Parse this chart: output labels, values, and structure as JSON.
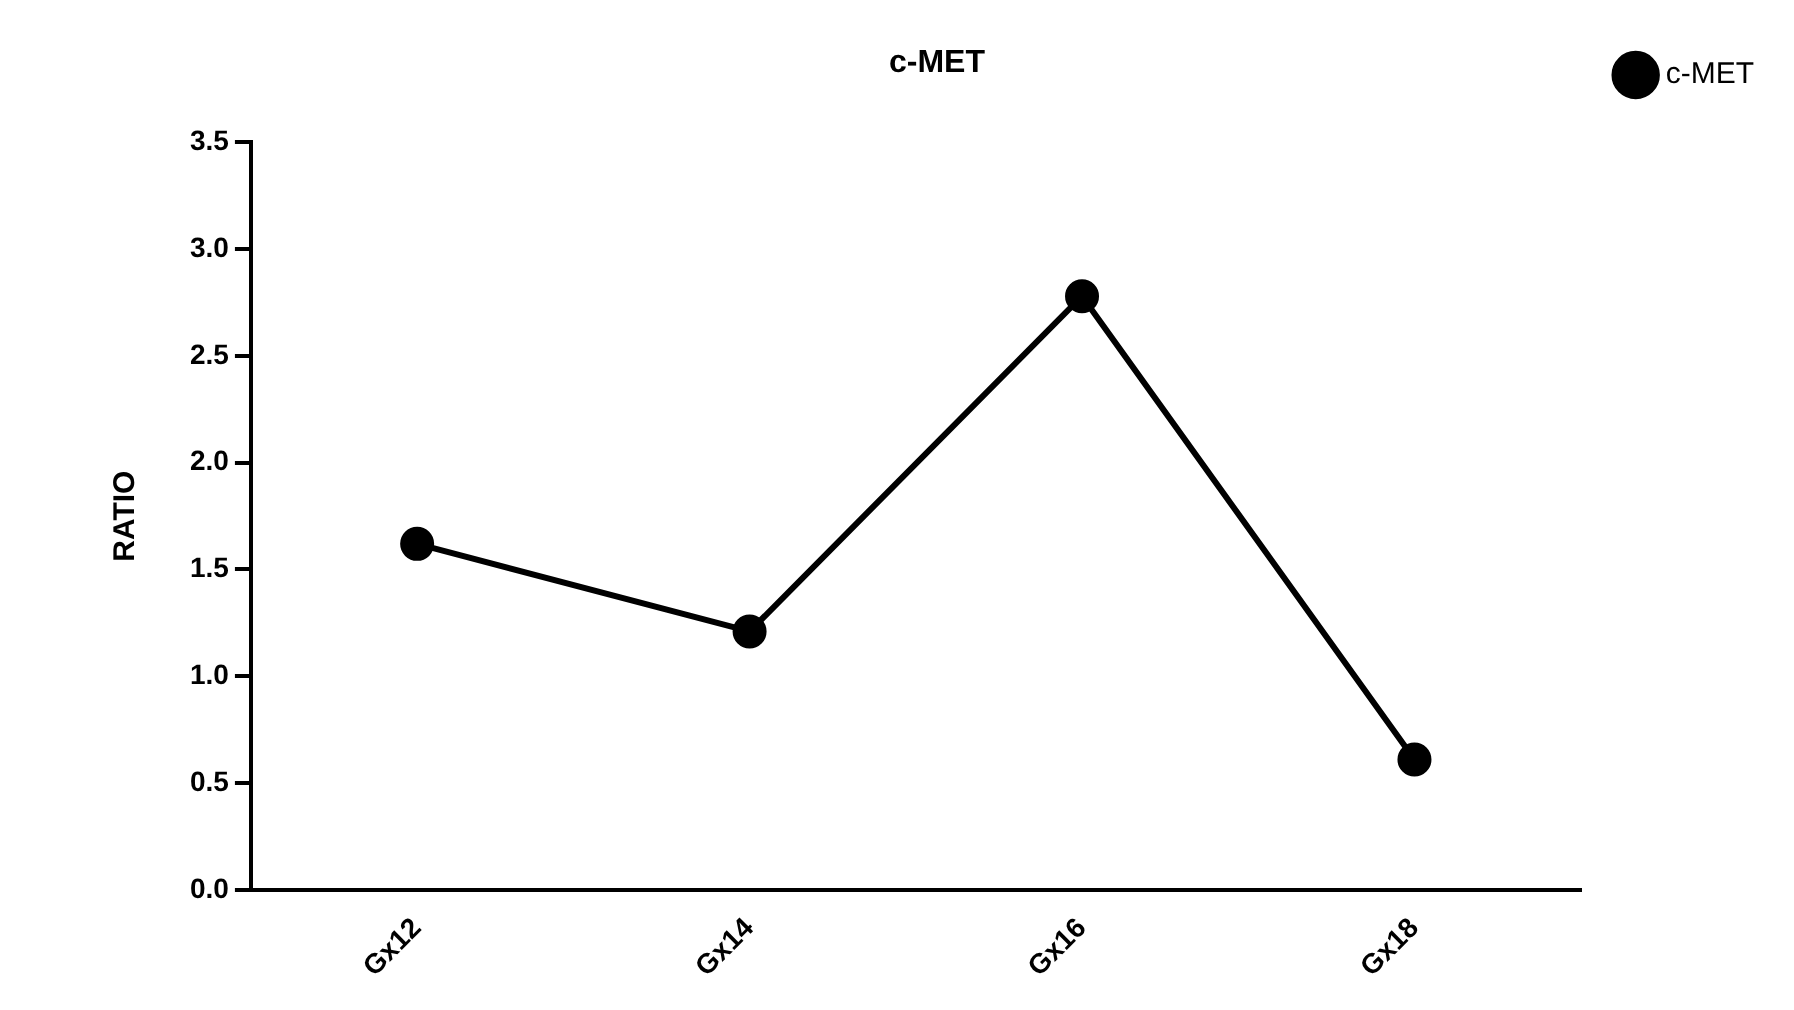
{
  "chart_data": {
    "type": "line",
    "title": "c-MET",
    "ylabel": "RATIO",
    "categories": [
      "Gx12",
      "Gx14",
      "Gx16",
      "Gx18"
    ],
    "series": [
      {
        "name": "c-MET",
        "color": "#000000",
        "values": [
          1.62,
          1.21,
          2.78,
          0.61
        ]
      }
    ],
    "ylim": [
      0,
      3.5
    ],
    "yticks": [
      {
        "value": 0,
        "label": "0.0"
      },
      0.5,
      {
        "value": 1,
        "label": "1.0"
      },
      1.5,
      {
        "value": 2,
        "label": "2.0"
      },
      2.5,
      {
        "value": 3,
        "label": "3.0"
      },
      3.5
    ],
    "grid": false,
    "legend": "top right",
    "marker": "circle",
    "line_style": "solid"
  }
}
